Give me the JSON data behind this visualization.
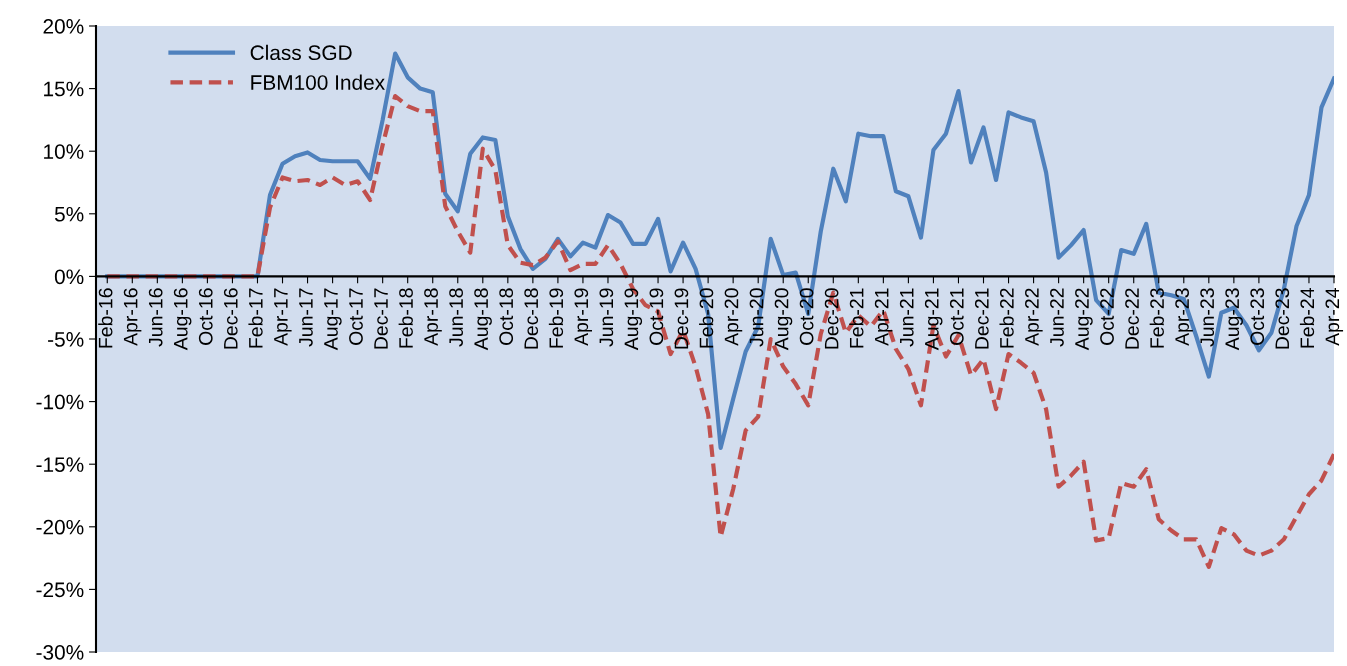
{
  "chart_data": {
    "type": "line",
    "categories": [
      "Feb-16",
      null,
      "Apr-16",
      null,
      "Jun-16",
      null,
      "Aug-16",
      null,
      "Oct-16",
      null,
      "Dec-16",
      null,
      "Feb-17",
      null,
      "Apr-17",
      null,
      "Jun-17",
      null,
      "Aug-17",
      null,
      "Oct-17",
      null,
      "Dec-17",
      null,
      "Feb-18",
      null,
      "Apr-18",
      null,
      "Jun-18",
      null,
      "Aug-18",
      null,
      "Oct-18",
      null,
      "Dec-18",
      null,
      "Feb-19",
      null,
      "Apr-19",
      null,
      "Jun-19",
      null,
      "Aug-19",
      null,
      "Oct-19",
      null,
      "Dec-19",
      null,
      "Feb-20",
      null,
      "Apr-20",
      null,
      "Jun-20",
      null,
      "Aug-20",
      null,
      "Oct-20",
      null,
      "Dec-20",
      null,
      "Feb-21",
      null,
      "Apr-21",
      null,
      "Jun-21",
      null,
      "Aug-21",
      null,
      "Oct-21",
      null,
      "Dec-21",
      null,
      "Feb-22",
      null,
      "Apr-22",
      null,
      "Jun-22",
      null,
      "Aug-22",
      null,
      "Oct-22",
      null,
      "Dec-22",
      null,
      "Feb-23",
      null,
      "Apr-23",
      null,
      "Jun-23",
      null,
      "Aug-23",
      null,
      "Oct-23",
      null,
      "Dec-23",
      null,
      "Feb-24",
      null,
      "Apr-24"
    ],
    "series": [
      {
        "name": "Class SGD",
        "color": "#4f81bd",
        "line_style": "solid",
        "values": [
          0,
          0,
          0,
          0,
          0,
          0,
          0,
          0,
          0,
          0,
          0,
          0,
          0,
          6.5,
          9.0,
          9.6,
          9.9,
          9.3,
          9.2,
          9.2,
          9.2,
          7.8,
          12.5,
          17.8,
          15.9,
          15.0,
          14.7,
          6.6,
          5.2,
          9.8,
          11.1,
          10.9,
          4.8,
          2.2,
          0.6,
          1.4,
          3.0,
          1.6,
          2.7,
          2.3,
          4.9,
          4.3,
          2.6,
          2.6,
          4.6,
          0.4,
          2.7,
          0.6,
          -3.0,
          -13.7,
          -9.8,
          -6.0,
          -4.0,
          3.0,
          0.1,
          0.3,
          -3.0,
          3.6,
          8.6,
          6.0,
          11.4,
          11.2,
          11.2,
          6.8,
          6.4,
          3.1,
          10.1,
          11.4,
          14.8,
          9.1,
          11.9,
          7.7,
          13.1,
          12.7,
          12.4,
          8.3,
          1.5,
          2.5,
          3.7,
          -1.9,
          -3.0,
          2.1,
          1.8,
          4.2,
          -1.3,
          -1.5,
          -1.8,
          -4.8,
          -8.0,
          -2.9,
          -2.5,
          -3.9,
          -5.9,
          -4.5,
          -1.0,
          4.0,
          6.5,
          13.5,
          15.8
        ]
      },
      {
        "name": "FBM100 Index",
        "color": "#c0504d",
        "line_style": "dashed",
        "values": [
          0,
          0,
          0,
          0,
          0,
          0,
          0,
          0,
          0,
          0,
          0,
          0,
          0,
          5.5,
          7.9,
          7.6,
          7.7,
          7.3,
          7.9,
          7.3,
          7.6,
          6.1,
          10.5,
          14.4,
          13.6,
          13.2,
          13.2,
          5.6,
          3.6,
          1.9,
          10.2,
          8.5,
          2.5,
          1.1,
          0.9,
          1.5,
          2.8,
          0.5,
          1.0,
          1.0,
          2.5,
          1.0,
          -1.0,
          -2.3,
          -2.8,
          -6.2,
          -4.3,
          -7.2,
          -11.0,
          -20.8,
          -17.0,
          -12.3,
          -11.2,
          -5.0,
          -7.2,
          -8.6,
          -10.3,
          -4.6,
          -1.3,
          -4.5,
          -3.1,
          -4.0,
          -2.7,
          -5.8,
          -7.4,
          -10.3,
          -3.9,
          -6.4,
          -4.7,
          -7.9,
          -6.6,
          -10.6,
          -6.2,
          -6.9,
          -7.7,
          -10.6,
          -16.8,
          -15.9,
          -14.8,
          -21.1,
          -20.9,
          -16.5,
          -16.8,
          -15.4,
          -19.4,
          -20.3,
          -21.0,
          -21.0,
          -23.2,
          -20.1,
          -20.6,
          -21.9,
          -22.3,
          -21.9,
          -21.0,
          -19.2,
          -17.4,
          -16.3,
          -14.2
        ]
      }
    ],
    "ylim": [
      -30,
      20
    ],
    "yticks": [
      {
        "value": -30,
        "label": "-30%"
      },
      {
        "value": -25,
        "label": "-25%"
      },
      {
        "value": -20,
        "label": "-20%"
      },
      {
        "value": -15,
        "label": "-15%"
      },
      {
        "value": -10,
        "label": "-10%"
      },
      {
        "value": -5,
        "label": "-5%"
      },
      {
        "value": 0,
        "label": "0%"
      },
      {
        "value": 5,
        "label": "5%"
      },
      {
        "value": 10,
        "label": "10%"
      },
      {
        "value": 15,
        "label": "15%"
      },
      {
        "value": 20,
        "label": "20%"
      }
    ],
    "grid": false,
    "legend": "top left",
    "marker": "none"
  }
}
